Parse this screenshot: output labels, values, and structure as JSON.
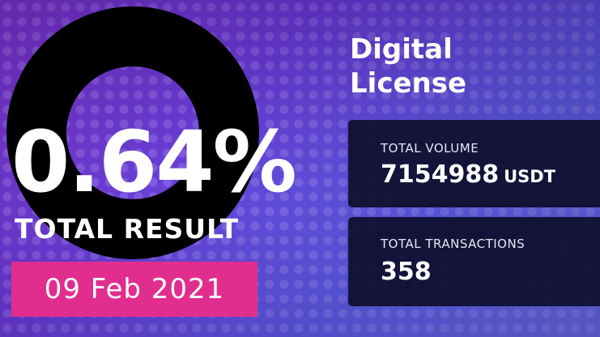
{
  "hero": {
    "percentage": "0.64%",
    "label": "TOTAL RESULT",
    "date": "09 Feb 2021"
  },
  "title_lines": [
    "Digital",
    "License"
  ],
  "volume": {
    "label": "TOTAL VOLUME",
    "value": "7154988",
    "unit": "USDT"
  },
  "transactions": {
    "label": "TOTAL TRANSACTIONS",
    "value": "358"
  },
  "colors": {
    "badge": "#e12e8e",
    "card": "#0e0e2c",
    "ring": "#000000"
  }
}
